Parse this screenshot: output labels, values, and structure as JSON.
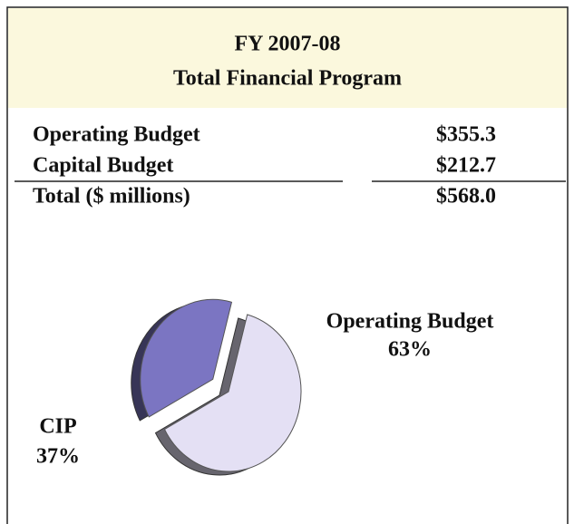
{
  "header": {
    "title": [
      "FY 2007-08",
      "Total Financial Program"
    ]
  },
  "table": {
    "rows": [
      [
        "Operating Budget",
        "$355.3"
      ],
      [
        "Capital Budget",
        "$212.7"
      ]
    ],
    "total": [
      "Total ($ millions)",
      "$568.0"
    ]
  },
  "chart_data": {
    "type": "pie",
    "categories": [
      "Operating Budget",
      "CIP"
    ],
    "values": [
      63,
      37
    ],
    "value_labels": [
      "63%",
      "37%"
    ],
    "colors": [
      "#e4e0f4",
      "#7b75c2"
    ]
  }
}
